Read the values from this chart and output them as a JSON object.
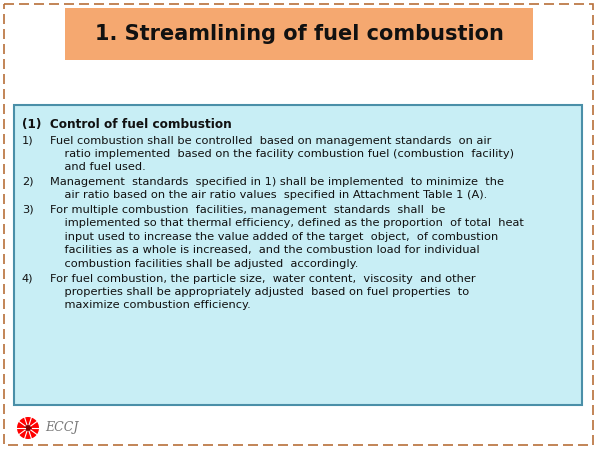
{
  "title": "1. Streamlining of fuel combustion",
  "title_bg_color": "#F5A870",
  "title_border_color": "#B8703A",
  "title_fontsize": 15,
  "bg_color": "#FFFFFF",
  "box_bg_color": "#C8EEF5",
  "box_border_color": "#4A8FA8",
  "section_header": "(1)  Control of fuel combustion",
  "item1_num": "1)",
  "item1_line1": "Fuel combustion shall be controlled  based on management standards  on air",
  "item1_line2": "    ratio implemented  based on the facility combustion fuel (combustion  facility)",
  "item1_line3": "    and fuel used.",
  "item2_num": "2)",
  "item2_line1": "Management  standards  specified in 1) shall be implemented  to minimize  the",
  "item2_line2": "    air ratio based on the air ratio values  specified in Attachment Table 1 (A).",
  "item3_num": "3)",
  "item3_line1": "For multiple combustion  facilities, management  standards  shall  be",
  "item3_line2": "    implemented so that thermal efficiency, defined as the proportion  of total  heat",
  "item3_line3": "    input used to increase the value added of the target  object,  of combustion",
  "item3_line4": "    facilities as a whole is increased,  and the combustion load for individual",
  "item3_line5": "    combustion facilities shall be adjusted  accordingly.",
  "item4_num": "4)",
  "item4_line1": "For fuel combustion, the particle size,  water content,  viscosity  and other",
  "item4_line2": "    properties shall be appropriately adjusted  based on fuel properties  to",
  "item4_line3": "    maximize combustion efficiency.",
  "eccj_text": "ECCJ",
  "text_color": "#111111",
  "body_fontsize": 8.2
}
